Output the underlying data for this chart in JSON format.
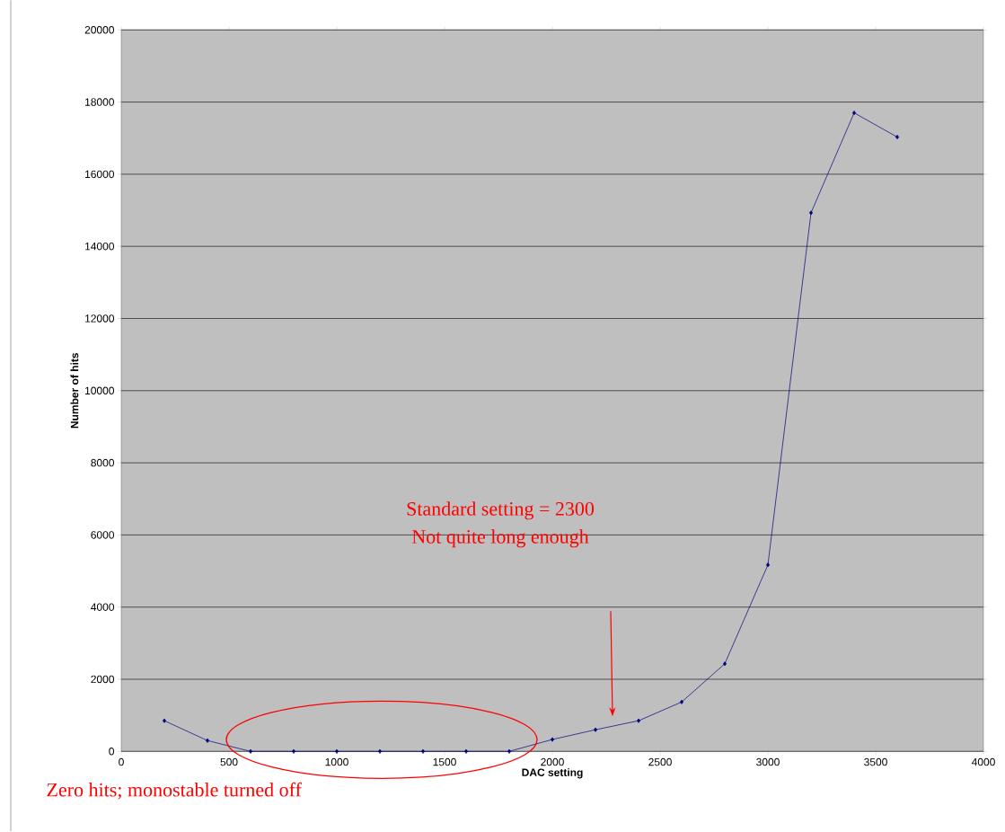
{
  "chart_data": {
    "type": "line",
    "xlabel": "DAC setting",
    "ylabel": "Number of hits",
    "x": [
      200,
      400,
      600,
      800,
      1000,
      1200,
      1400,
      1600,
      1800,
      2000,
      2200,
      2400,
      2600,
      2800,
      3000,
      3200,
      3400,
      3600
    ],
    "series": [
      {
        "color": "#000080",
        "values": [
          850,
          300,
          0,
          0,
          0,
          0,
          0,
          0,
          0,
          330,
          600,
          850,
          1370,
          2430,
          5170,
          14930,
          17700,
          17030
        ]
      }
    ],
    "xlim": [
      0,
      4000
    ],
    "xticks": [
      0,
      500,
      1000,
      1500,
      2000,
      2500,
      3000,
      3500,
      4000
    ],
    "ylim": [
      0,
      20000
    ],
    "yticks": [
      0,
      2000,
      4000,
      6000,
      8000,
      10000,
      12000,
      14000,
      16000,
      18000,
      20000
    ],
    "grid": "y",
    "marker": "diamond",
    "line_style": "solid",
    "annotations": [
      "Standard setting = 2300",
      "Not quite long enough",
      "Zero hits; monostable turned off"
    ]
  }
}
